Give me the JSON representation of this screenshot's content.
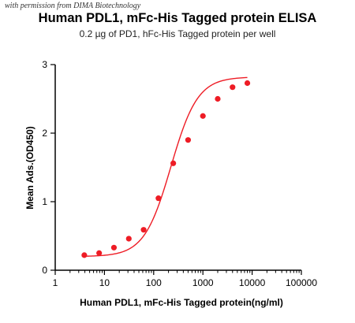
{
  "watermark": "with permission from DIMA Biotechnology",
  "chart_data": {
    "type": "scatter",
    "title": "Human PDL1, mFc-His Tagged protein ELISA",
    "subtitle": "0.2 µg of PD1, hFc-His Tagged protein per well",
    "xlabel": "Human PDL1, mFc-His Tagged protein(ng/ml)",
    "ylabel": "Mean Ads.(OD450)",
    "xscale": "log",
    "xlim": [
      1,
      100000
    ],
    "ylim": [
      0,
      3
    ],
    "x_ticks": [
      1,
      10,
      100,
      1000,
      10000,
      100000
    ],
    "x_tick_labels": [
      "1",
      "10",
      "100",
      "1000",
      "10000",
      "100000"
    ],
    "y_ticks": [
      0,
      1,
      2,
      3
    ],
    "y_tick_labels": [
      "0",
      "1",
      "2",
      "3"
    ],
    "grid": false,
    "color": "#ee1c25",
    "series": [
      {
        "x": [
          3.9,
          7.8,
          15.6,
          31.25,
          62.5,
          125,
          250,
          500,
          1000,
          2000,
          4000,
          8000
        ],
        "y": [
          0.22,
          0.25,
          0.33,
          0.46,
          0.59,
          1.05,
          1.56,
          1.9,
          2.25,
          2.5,
          2.67,
          2.73
        ]
      }
    ]
  }
}
